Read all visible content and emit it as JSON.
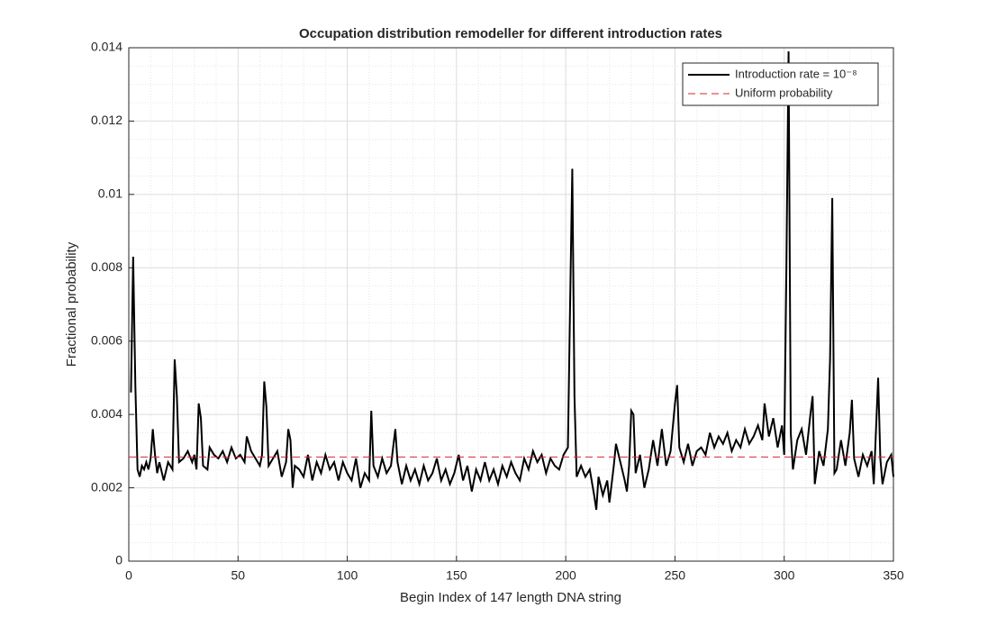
{
  "chart_data": {
    "type": "line",
    "title": "Occupation distribution remodeller for different introduction rates",
    "xlabel": "Begin Index of 147 length DNA string",
    "ylabel": "Fractional probability",
    "xlim": [
      0,
      350
    ],
    "ylim": [
      0,
      0.014
    ],
    "xticks": [
      0,
      50,
      100,
      150,
      200,
      250,
      300,
      350
    ],
    "yticks": [
      0,
      0.002,
      0.004,
      0.006,
      0.008,
      0.01,
      0.012,
      0.014
    ],
    "xminorticks": [
      10,
      20,
      30,
      40,
      60,
      70,
      80,
      90,
      110,
      120,
      130,
      140,
      160,
      170,
      180,
      190,
      210,
      220,
      230,
      240,
      260,
      270,
      280,
      290,
      310,
      320,
      330,
      340
    ],
    "yminorticks": [
      0.0005,
      0.001,
      0.0015,
      0.0025,
      0.003,
      0.0035,
      0.0045,
      0.005,
      0.0055,
      0.0065,
      0.007,
      0.0075,
      0.0085,
      0.009,
      0.0095,
      0.0105,
      0.011,
      0.0115,
      0.0125,
      0.013,
      0.0135
    ],
    "grid": true,
    "minor_grid": true,
    "legend": "upper right",
    "series": [
      {
        "name": "Introduction rate = 10⁻⁸",
        "color": "#000000",
        "style": "solid",
        "x": [
          1,
          2,
          3,
          4,
          5,
          6,
          7,
          8,
          9,
          10,
          11,
          12,
          13,
          14,
          16,
          18,
          20,
          21,
          22,
          23,
          25,
          27,
          29,
          30,
          31,
          32,
          33,
          34,
          36,
          37,
          39,
          41,
          43,
          45,
          47,
          49,
          51,
          53,
          54,
          56,
          58,
          60,
          61,
          62,
          63,
          64,
          66,
          68,
          70,
          72,
          73,
          74,
          75,
          76,
          78,
          80,
          82,
          84,
          86,
          88,
          90,
          92,
          94,
          96,
          98,
          100,
          102,
          104,
          106,
          108,
          110,
          111,
          112,
          114,
          116,
          118,
          120,
          122,
          123,
          125,
          127,
          129,
          131,
          133,
          135,
          137,
          139,
          141,
          143,
          145,
          147,
          149,
          151,
          153,
          155,
          157,
          159,
          161,
          163,
          165,
          167,
          169,
          171,
          173,
          175,
          177,
          179,
          181,
          183,
          185,
          187,
          189,
          191,
          193,
          195,
          197,
          199,
          201,
          202,
          203,
          204,
          205,
          207,
          209,
          211,
          213,
          214,
          215,
          217,
          219,
          220,
          222,
          223,
          225,
          227,
          228,
          229,
          230,
          231,
          232,
          234,
          236,
          238,
          240,
          242,
          244,
          246,
          248,
          250,
          251,
          252,
          254,
          256,
          258,
          260,
          262,
          264,
          266,
          268,
          270,
          272,
          274,
          276,
          278,
          280,
          282,
          284,
          286,
          288,
          290,
          291,
          293,
          295,
          297,
          299,
          300,
          301,
          302,
          303,
          304,
          306,
          308,
          310,
          312,
          313,
          314,
          316,
          318,
          320,
          321,
          322,
          323,
          324,
          326,
          328,
          330,
          331,
          332,
          334,
          336,
          338,
          340,
          341,
          343,
          344,
          345,
          347,
          349,
          350
        ],
        "values": [
          0.0046,
          0.0083,
          0.0048,
          0.0025,
          0.0023,
          0.0026,
          0.0025,
          0.0027,
          0.0025,
          0.0028,
          0.0036,
          0.0029,
          0.0024,
          0.0027,
          0.0022,
          0.0027,
          0.0025,
          0.0055,
          0.0045,
          0.0027,
          0.0028,
          0.003,
          0.0027,
          0.0029,
          0.0025,
          0.0043,
          0.0039,
          0.0026,
          0.0025,
          0.0031,
          0.0029,
          0.0028,
          0.003,
          0.0027,
          0.0031,
          0.0028,
          0.0029,
          0.0027,
          0.0034,
          0.003,
          0.0028,
          0.0026,
          0.0029,
          0.0049,
          0.0042,
          0.0026,
          0.0028,
          0.003,
          0.0023,
          0.0027,
          0.0036,
          0.0033,
          0.002,
          0.0026,
          0.0025,
          0.0023,
          0.0029,
          0.0022,
          0.0027,
          0.0024,
          0.0029,
          0.0025,
          0.0027,
          0.0022,
          0.0027,
          0.0024,
          0.0022,
          0.0028,
          0.002,
          0.0024,
          0.0022,
          0.0041,
          0.0026,
          0.0023,
          0.0028,
          0.0024,
          0.0026,
          0.0036,
          0.0027,
          0.0021,
          0.0026,
          0.0022,
          0.0025,
          0.0021,
          0.0026,
          0.0022,
          0.0024,
          0.0028,
          0.0022,
          0.0025,
          0.0021,
          0.0024,
          0.0029,
          0.0022,
          0.0026,
          0.0019,
          0.0025,
          0.0022,
          0.0027,
          0.0022,
          0.0025,
          0.0021,
          0.0026,
          0.0023,
          0.0027,
          0.0024,
          0.0022,
          0.0028,
          0.0025,
          0.003,
          0.0027,
          0.0029,
          0.0024,
          0.0028,
          0.0026,
          0.0025,
          0.0029,
          0.0031,
          0.007,
          0.0107,
          0.0045,
          0.0023,
          0.0026,
          0.0023,
          0.0025,
          0.0018,
          0.0014,
          0.0023,
          0.0018,
          0.0022,
          0.0016,
          0.0026,
          0.0032,
          0.0027,
          0.0022,
          0.0019,
          0.0026,
          0.0041,
          0.004,
          0.0024,
          0.0029,
          0.002,
          0.0025,
          0.0033,
          0.0026,
          0.0036,
          0.0026,
          0.003,
          0.0043,
          0.0048,
          0.0031,
          0.0027,
          0.0032,
          0.0026,
          0.003,
          0.0031,
          0.0029,
          0.0035,
          0.0031,
          0.0034,
          0.0032,
          0.0035,
          0.003,
          0.0033,
          0.0031,
          0.0036,
          0.0032,
          0.0034,
          0.0037,
          0.0033,
          0.0043,
          0.0034,
          0.0039,
          0.0031,
          0.0037,
          0.0029,
          0.008,
          0.0139,
          0.0035,
          0.0025,
          0.0033,
          0.0036,
          0.0029,
          0.004,
          0.0045,
          0.0021,
          0.003,
          0.0026,
          0.0036,
          0.0055,
          0.0099,
          0.0024,
          0.0025,
          0.0033,
          0.0026,
          0.0035,
          0.0044,
          0.0028,
          0.0023,
          0.0029,
          0.0026,
          0.003,
          0.0021,
          0.005,
          0.0028,
          0.0021,
          0.0027,
          0.0029,
          0.0023
        ]
      },
      {
        "name": "Uniform probability",
        "color": "#d62728",
        "style": "dashed",
        "x": [
          0,
          350
        ],
        "values": [
          0.00284,
          0.00284
        ]
      }
    ]
  }
}
